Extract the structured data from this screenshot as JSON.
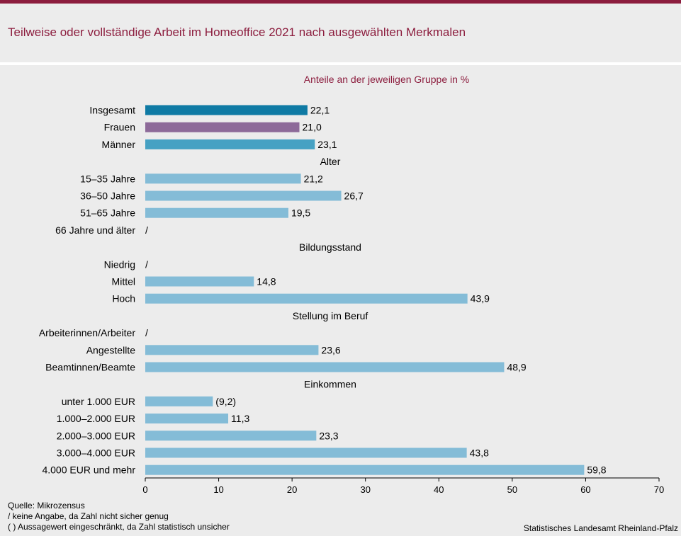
{
  "title": "Teilweise oder vollständige Arbeit im Homeoffice 2021 nach ausgewählten Merkmalen",
  "colors": {
    "accent": "#8c1d3e",
    "insgesamt": "#0f7aa4",
    "frauen": "#8d6a99",
    "maenner": "#46a1c3",
    "default": "#84bcd7"
  },
  "chart_data": {
    "type": "bar",
    "orientation": "horizontal",
    "subtitle": "Anteile an der jeweiligen Gruppe in %",
    "xlim": [
      0,
      70
    ],
    "xticks": [
      0,
      10,
      20,
      30,
      40,
      50,
      60,
      70
    ],
    "grid": false,
    "rows": [
      {
        "kind": "bar",
        "label": "Insgesamt",
        "value": 22.1,
        "text": "22,1",
        "color_key": "insgesamt"
      },
      {
        "kind": "bar",
        "label": "Frauen",
        "value": 21.0,
        "text": "21,0",
        "color_key": "frauen"
      },
      {
        "kind": "bar",
        "label": "Männer",
        "value": 23.1,
        "text": "23,1",
        "color_key": "maenner"
      },
      {
        "kind": "group",
        "label": "Alter"
      },
      {
        "kind": "bar",
        "label": "15–35 Jahre",
        "value": 21.2,
        "text": "21,2",
        "color_key": "default"
      },
      {
        "kind": "bar",
        "label": "36–50 Jahre",
        "value": 26.7,
        "text": "26,7",
        "color_key": "default"
      },
      {
        "kind": "bar",
        "label": "51–65 Jahre",
        "value": 19.5,
        "text": "19,5",
        "color_key": "default"
      },
      {
        "kind": "bar",
        "label": "66 Jahre und älter",
        "value": null,
        "text": "/",
        "color_key": "default"
      },
      {
        "kind": "group",
        "label": "Bildungsstand"
      },
      {
        "kind": "bar",
        "label": "Niedrig",
        "value": null,
        "text": "/",
        "color_key": "default"
      },
      {
        "kind": "bar",
        "label": "Mittel",
        "value": 14.8,
        "text": "14,8",
        "color_key": "default"
      },
      {
        "kind": "bar",
        "label": "Hoch",
        "value": 43.9,
        "text": "43,9",
        "color_key": "default"
      },
      {
        "kind": "group",
        "label": "Stellung im Beruf"
      },
      {
        "kind": "bar",
        "label": "Arbeiterinnen/Arbeiter",
        "value": null,
        "text": "/",
        "color_key": "default"
      },
      {
        "kind": "bar",
        "label": "Angestellte",
        "value": 23.6,
        "text": "23,6",
        "color_key": "default"
      },
      {
        "kind": "bar",
        "label": "Beamtinnen/Beamte",
        "value": 48.9,
        "text": "48,9",
        "color_key": "default"
      },
      {
        "kind": "group",
        "label": "Einkommen"
      },
      {
        "kind": "bar",
        "label": "unter 1.000 EUR",
        "value": 9.2,
        "text": "(9,2)",
        "color_key": "default"
      },
      {
        "kind": "bar",
        "label": "1.000–2.000 EUR",
        "value": 11.3,
        "text": "11,3",
        "color_key": "default"
      },
      {
        "kind": "bar",
        "label": "2.000–3.000 EUR",
        "value": 23.3,
        "text": "23,3",
        "color_key": "default"
      },
      {
        "kind": "bar",
        "label": "3.000–4.000 EUR",
        "value": 43.8,
        "text": "43,8",
        "color_key": "default"
      },
      {
        "kind": "bar",
        "label": "4.000 EUR und mehr",
        "value": 59.8,
        "text": "59,8",
        "color_key": "default"
      }
    ]
  },
  "footer": {
    "source": "Quelle: Mikrozensus",
    "note1": "/    keine Angabe, da Zahl nicht sicher genug",
    "note2": "( )   Aussagewert eingeschränkt, da Zahl  statistisch unsicher",
    "publisher": "Statistisches Landesamt Rheinland-Pfalz"
  }
}
